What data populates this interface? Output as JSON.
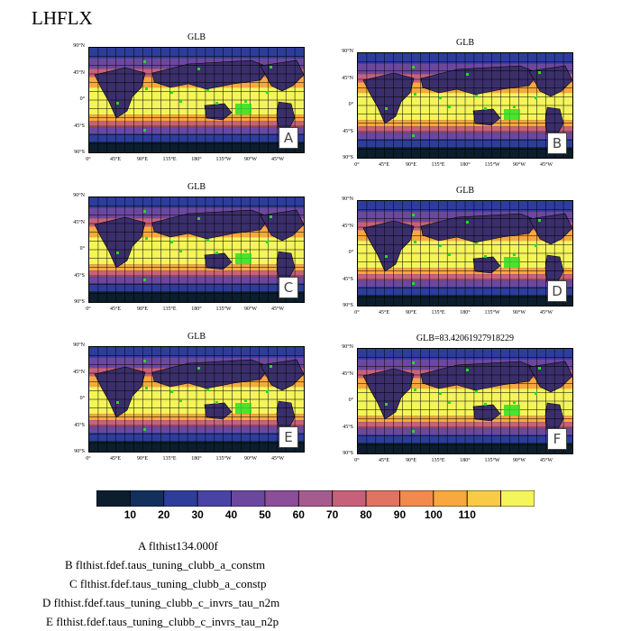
{
  "title": "LHFLX",
  "panels": [
    {
      "title": "GLB",
      "letter": "A"
    },
    {
      "title": "GLB",
      "letter": "B"
    },
    {
      "title": "GLB",
      "letter": "C"
    },
    {
      "title": "GLB",
      "letter": "D"
    },
    {
      "title": "GLB",
      "letter": "E"
    },
    {
      "title": "GLB=83.42061927918229",
      "letter": "F"
    }
  ],
  "lat_labels": [
    "90°N",
    "45°N",
    "0°",
    "45°S",
    "90°S"
  ],
  "lon_labels": [
    "0°",
    "45°E",
    "90°E",
    "135°E",
    "180°",
    "135°W",
    "90°W",
    "45°W"
  ],
  "colorbar": {
    "colors": [
      "#0c1e2e",
      "#132f5c",
      "#2e3d9a",
      "#4a43a6",
      "#6b489e",
      "#8a4f98",
      "#a65b8f",
      "#c7617b",
      "#e07362",
      "#f18a4c",
      "#f8a83e",
      "#f9cb45",
      "#f4f45b"
    ],
    "ticks": [
      "10",
      "20",
      "30",
      "40",
      "50",
      "60",
      "70",
      "80",
      "90",
      "100",
      "110"
    ]
  },
  "legend": [
    "A  flthist134.000f",
    "B  flthist.fdef.taus_tuning_clubb_a_constm",
    "C  flthist.fdef.taus_tuning_clubb_a_constp",
    "D  flthist.fdef.taus_tuning_clubb_c_invrs_tau_n2m",
    "E  flthist.fdef.taus_tuning_clubb_c_invrs_tau_n2p"
  ]
}
